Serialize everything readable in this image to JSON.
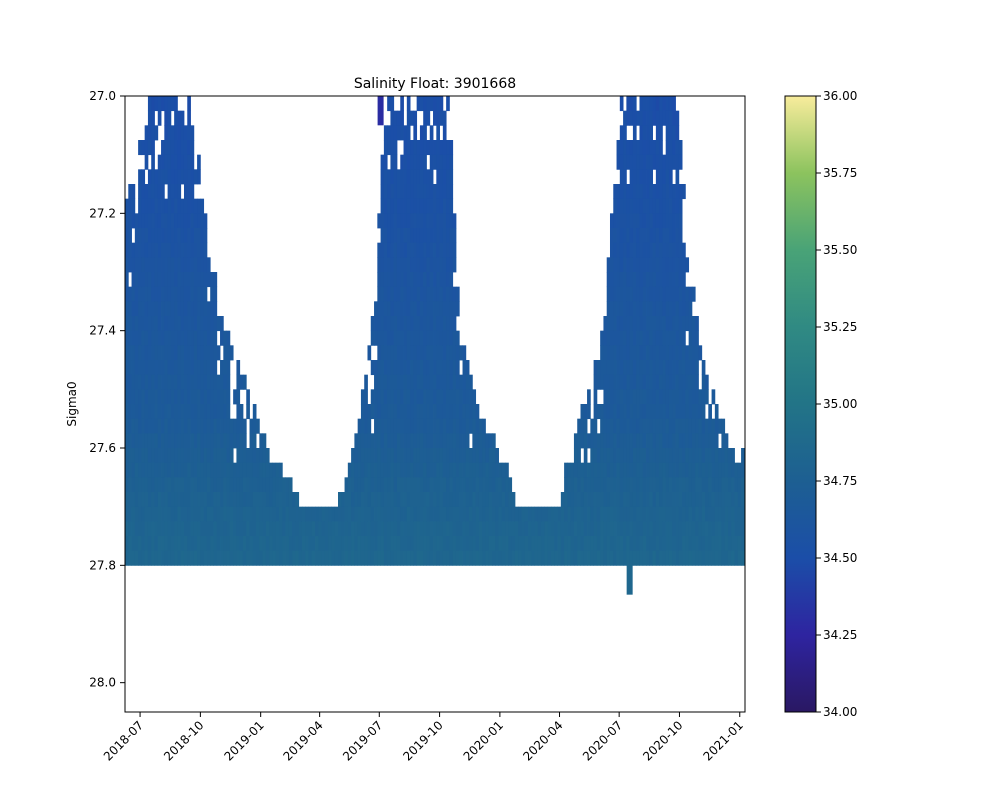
{
  "chart_data": {
    "type": "heatmap",
    "title": "Salinity Float: 3901668",
    "xlabel": "",
    "ylabel": "Sigma0",
    "x_ticks": [
      "2018-07",
      "2018-10",
      "2019-01",
      "2019-04",
      "2019-07",
      "2019-10",
      "2020-01",
      "2020-04",
      "2020-07",
      "2020-10",
      "2021-01"
    ],
    "y_ticks": [
      27.0,
      27.2,
      27.4,
      27.6,
      27.8,
      28.0
    ],
    "xlim": [
      "2018-06-08",
      "2021-01-09"
    ],
    "ylim": [
      28.05,
      27.0
    ],
    "y_inverted": true,
    "colorbar": {
      "range": [
        34.0,
        36.0
      ],
      "ticks": [
        "34.00",
        "34.25",
        "34.50",
        "34.75",
        "35.00",
        "35.25",
        "35.50",
        "35.75",
        "36.00"
      ],
      "colormap": "haline-like: deep purple to blue to teal to green to pale yellow",
      "colors": [
        "#2a1863",
        "#2e24a0",
        "#1b4ea8",
        "#1d5f92",
        "#227487",
        "#308a83",
        "#49a377",
        "#8cc35e",
        "#f8ec9c"
      ]
    },
    "profile_spacing_days": 5,
    "sigma_bin_width": 0.025,
    "profiles_summary": "Profiles spaced ~5 days apart; each covers sigma0 from a seasonally varying top bound down to 27.8. Top bound reaches 27.0 in austral summer (Jul-Sep) and drops to ~27.7 in Feb-Apr. Salinity ~34.50 near 27.0-27.3 (blue), ~34.60-34.70 mid-range, ~34.80-34.85 at 27.7-27.8 (teal).",
    "shape_keyframes": [
      {
        "date": "2018-06-08",
        "top": 27.2
      },
      {
        "date": "2018-06-25",
        "top": 27.12
      },
      {
        "date": "2018-07-15",
        "top": 27.0
      },
      {
        "date": "2018-09-15",
        "top": 27.0
      },
      {
        "date": "2018-10-15",
        "top": 27.27
      },
      {
        "date": "2018-11-15",
        "top": 27.43
      },
      {
        "date": "2018-12-15",
        "top": 27.52
      },
      {
        "date": "2019-01-15",
        "top": 27.62
      },
      {
        "date": "2019-02-10",
        "top": 27.66
      },
      {
        "date": "2019-03-01",
        "top": 27.7
      },
      {
        "date": "2019-05-01",
        "top": 27.7
      },
      {
        "date": "2019-05-10",
        "top": 27.66
      },
      {
        "date": "2019-05-25",
        "top": 27.6
      },
      {
        "date": "2019-06-10",
        "top": 27.48
      },
      {
        "date": "2019-06-25",
        "top": 27.35
      },
      {
        "date": "2019-07-10",
        "top": 27.0
      },
      {
        "date": "2019-10-15",
        "top": 27.0
      },
      {
        "date": "2019-11-01",
        "top": 27.4
      },
      {
        "date": "2019-12-01",
        "top": 27.55
      },
      {
        "date": "2020-01-15",
        "top": 27.65
      },
      {
        "date": "2020-01-25",
        "top": 27.7
      },
      {
        "date": "2020-04-01",
        "top": 27.7
      },
      {
        "date": "2020-04-10",
        "top": 27.65
      },
      {
        "date": "2020-05-01",
        "top": 27.55
      },
      {
        "date": "2020-06-01",
        "top": 27.45
      },
      {
        "date": "2020-06-25",
        "top": 27.15
      },
      {
        "date": "2020-07-05",
        "top": 27.0
      },
      {
        "date": "2020-09-30",
        "top": 27.0
      },
      {
        "date": "2020-10-15",
        "top": 27.3
      },
      {
        "date": "2020-11-15",
        "top": 27.5
      },
      {
        "date": "2020-12-15",
        "top": 27.6
      },
      {
        "date": "2021-01-09",
        "top": 27.6
      }
    ],
    "salinity_profile": [
      {
        "sigma": 27.0,
        "salinity": 34.5
      },
      {
        "sigma": 27.2,
        "salinity": 34.55
      },
      {
        "sigma": 27.4,
        "salinity": 34.63
      },
      {
        "sigma": 27.55,
        "salinity": 34.68
      },
      {
        "sigma": 27.65,
        "salinity": 34.76
      },
      {
        "sigma": 27.8,
        "salinity": 34.84
      }
    ],
    "outliers": [
      {
        "date": "2019-07-03",
        "sigma_top": 27.0,
        "sigma_bottom": 27.05,
        "salinity": 34.3
      },
      {
        "date": "2020-07-17",
        "sigma_top": 27.8,
        "sigma_bottom": 27.85,
        "salinity": 34.85
      }
    ]
  }
}
